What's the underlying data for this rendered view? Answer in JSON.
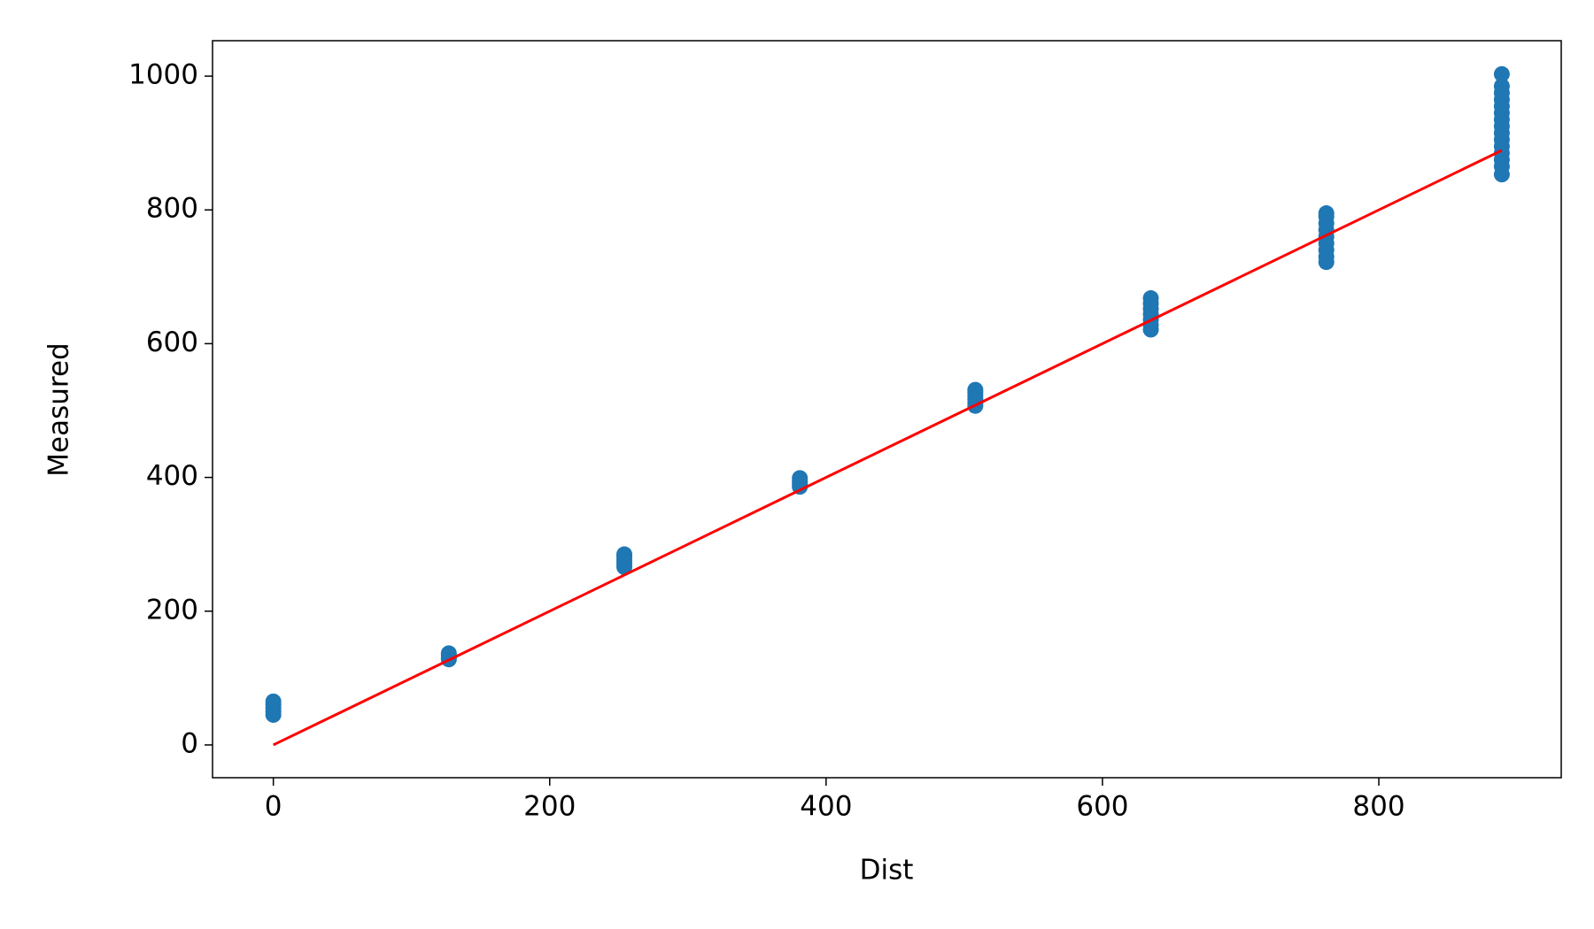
{
  "chart_data": {
    "type": "scatter",
    "xlabel": "Dist",
    "ylabel": "Measured",
    "xlim": [
      -44,
      932
    ],
    "ylim": [
      -49,
      1053
    ],
    "xticks": [
      0,
      200,
      400,
      600,
      800
    ],
    "yticks": [
      0,
      200,
      400,
      600,
      800,
      1000
    ],
    "series": [
      {
        "type": "scatter",
        "color": "#1f77b4",
        "x": [
          0,
          0,
          0,
          0,
          0,
          127,
          127,
          127,
          127,
          254,
          254,
          254,
          254,
          254,
          381,
          381,
          381,
          381,
          508,
          508,
          508,
          508,
          508,
          508,
          635,
          635,
          635,
          635,
          635,
          635,
          635,
          762,
          762,
          762,
          762,
          762,
          762,
          762,
          762,
          762,
          889,
          889,
          889,
          889,
          889,
          889,
          889,
          889,
          889,
          889,
          889,
          889,
          889,
          889,
          889
        ],
        "values": [
          45,
          50,
          55,
          60,
          65,
          128,
          131,
          134,
          137,
          266,
          271,
          276,
          281,
          285,
          386,
          390,
          394,
          399,
          507,
          512,
          517,
          522,
          527,
          531,
          621,
          628,
          636,
          644,
          652,
          660,
          668,
          722,
          730,
          740,
          750,
          760,
          770,
          780,
          790,
          795,
          853,
          865,
          875,
          885,
          895,
          905,
          915,
          925,
          935,
          945,
          955,
          965,
          975,
          985,
          1003
        ]
      },
      {
        "type": "line",
        "color": "#ff0000",
        "x": [
          0,
          889
        ],
        "values": [
          0,
          889
        ]
      }
    ]
  }
}
